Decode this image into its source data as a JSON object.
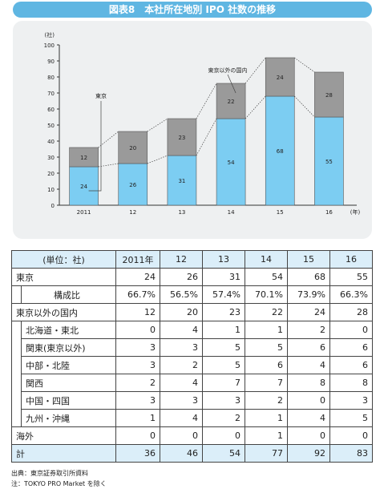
{
  "header": {
    "title": "図表8　本社所在地別 IPO 社数の推移"
  },
  "chart_data": {
    "type": "bar",
    "stacked": true,
    "categories": [
      "2011",
      "12",
      "13",
      "14",
      "15",
      "16"
    ],
    "series": [
      {
        "name": "東京",
        "values": [
          24,
          26,
          31,
          54,
          68,
          55
        ],
        "color": "#7ccdf2"
      },
      {
        "name": "東京以外の国内",
        "values": [
          12,
          20,
          23,
          22,
          24,
          28
        ],
        "color": "#9a9a9a"
      }
    ],
    "ylabel": "(社)",
    "xunit": "(年)",
    "ylim": [
      0,
      100
    ],
    "yticks": [
      0,
      10,
      20,
      30,
      40,
      50,
      60,
      70,
      80,
      90,
      100
    ],
    "grid": false
  },
  "table": {
    "header": [
      "(単位：社)",
      "2011年",
      "12",
      "13",
      "14",
      "15",
      "16"
    ],
    "rows": [
      {
        "label": "東京",
        "values": [
          "24",
          "26",
          "31",
          "54",
          "68",
          "55"
        ]
      },
      {
        "label": "構成比",
        "values": [
          "66.7%",
          "56.5%",
          "57.4%",
          "70.1%",
          "73.9%",
          "66.3%"
        ]
      },
      {
        "label": "東京以外の国内",
        "values": [
          "12",
          "20",
          "23",
          "22",
          "24",
          "28"
        ]
      },
      {
        "label": "北海道・東北",
        "values": [
          "0",
          "4",
          "1",
          "1",
          "2",
          "0"
        ]
      },
      {
        "label": "関東(東京以外)",
        "values": [
          "3",
          "3",
          "5",
          "5",
          "6",
          "6"
        ]
      },
      {
        "label": "中部・北陸",
        "values": [
          "3",
          "2",
          "5",
          "6",
          "4",
          "6"
        ]
      },
      {
        "label": "関西",
        "values": [
          "2",
          "4",
          "7",
          "7",
          "8",
          "8"
        ]
      },
      {
        "label": "中国・四国",
        "values": [
          "3",
          "3",
          "3",
          "2",
          "0",
          "3"
        ]
      },
      {
        "label": "九州・沖縄",
        "values": [
          "1",
          "4",
          "2",
          "1",
          "4",
          "5"
        ]
      },
      {
        "label": "海外",
        "values": [
          "0",
          "0",
          "0",
          "1",
          "0",
          "0"
        ]
      },
      {
        "label": "計",
        "values": [
          "36",
          "46",
          "54",
          "77",
          "92",
          "83"
        ]
      }
    ]
  },
  "notes": {
    "source": "出典：東京証券取引所資料",
    "note": "注：TOKYO PRO Market を除く"
  }
}
